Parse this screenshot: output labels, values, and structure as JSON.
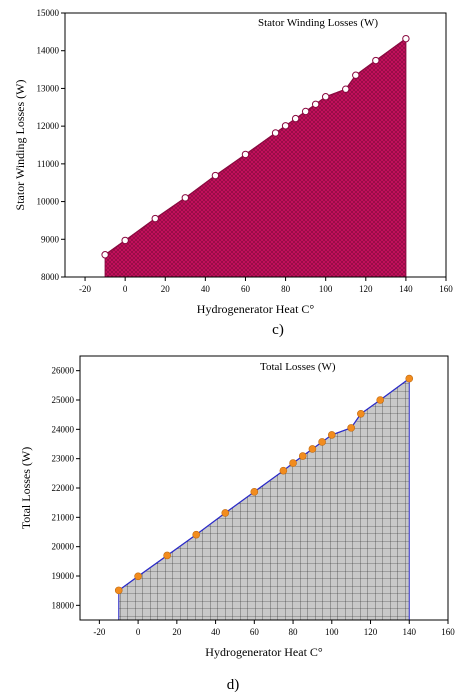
{
  "chart_data": [
    {
      "id": "c",
      "type": "area",
      "legend_label": "Stator Winding Losses (W)",
      "legend_placement": "top-right",
      "xlabel": "Hydrogenerator Heat C°",
      "ylabel": "Stator Winding Losses (W)",
      "xlim": [
        -30,
        160
      ],
      "ylim": [
        8000,
        15000
      ],
      "xticks": [
        -20,
        0,
        20,
        40,
        60,
        80,
        100,
        120,
        140,
        160
      ],
      "yticks": [
        8000,
        9000,
        10000,
        11000,
        12000,
        13000,
        14000,
        15000
      ],
      "grid": false,
      "fill_pattern": "crosshatch",
      "fill_color": "#c8105e",
      "line_color": "#8a0a40",
      "marker": "open-circle",
      "marker_color": "#ffffff",
      "x": [
        -10,
        0,
        15,
        30,
        45,
        60,
        75,
        80,
        85,
        90,
        95,
        100,
        110,
        115,
        125,
        140
      ],
      "y": [
        8590,
        8970,
        9550,
        10100,
        10690,
        11250,
        11820,
        12010,
        12200,
        12390,
        12580,
        12780,
        12980,
        13350,
        13740,
        14320
      ],
      "caption": "c)"
    },
    {
      "id": "d",
      "type": "area",
      "legend_label": "Total Losses (W)",
      "legend_placement": "top-right",
      "xlabel": "Hydrogenerator Heat C°",
      "ylabel": "Total Losses (W)",
      "xlim": [
        -30,
        160
      ],
      "ylim": [
        17500,
        26500
      ],
      "xticks": [
        -20,
        0,
        20,
        40,
        60,
        80,
        100,
        120,
        140,
        160
      ],
      "yticks": [
        18000,
        19000,
        20000,
        21000,
        22000,
        23000,
        24000,
        25000,
        26000
      ],
      "grid": false,
      "fill_pattern": "square-grid",
      "fill_color": "#c8c8c8",
      "line_color": "#2d2dc8",
      "marker": "filled-circle",
      "marker_color": "#f28c1e",
      "x": [
        -10,
        0,
        15,
        30,
        45,
        60,
        75,
        80,
        85,
        90,
        95,
        100,
        110,
        115,
        125,
        140
      ],
      "y": [
        18510,
        18990,
        19700,
        20410,
        21150,
        21870,
        22590,
        22850,
        23090,
        23330,
        23570,
        23810,
        24050,
        24530,
        25000,
        25730
      ],
      "caption": "d)"
    }
  ]
}
